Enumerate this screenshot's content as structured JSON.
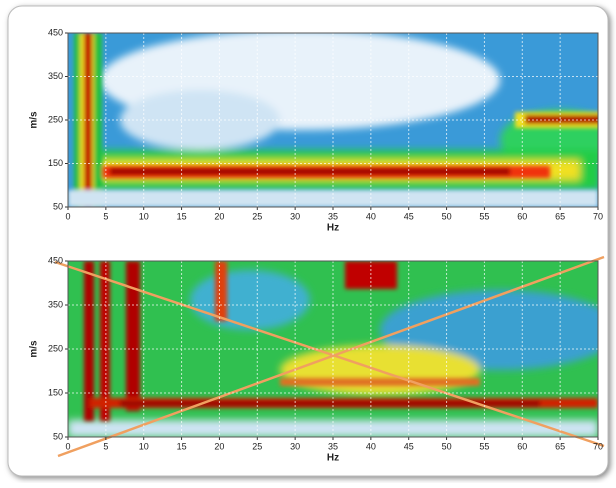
{
  "chart_data": [
    {
      "type": "heatmap",
      "xlabel": "Hz",
      "ylabel": "m/s",
      "xlim": [
        0,
        70
      ],
      "ylim": [
        50,
        450
      ],
      "xticks": [
        0,
        5,
        10,
        15,
        20,
        25,
        30,
        35,
        40,
        45,
        50,
        55,
        60,
        65,
        70
      ],
      "yticks": [
        50,
        150,
        250,
        350,
        450
      ],
      "grid": true
    },
    {
      "type": "heatmap",
      "xlabel": "Hz",
      "ylabel": "m/s",
      "xlim": [
        0,
        70
      ],
      "ylim": [
        50,
        450
      ],
      "xticks": [
        0,
        5,
        10,
        15,
        20,
        25,
        30,
        35,
        40,
        45,
        50,
        55,
        60,
        65,
        70
      ],
      "yticks": [
        50,
        150,
        250,
        350,
        450
      ],
      "grid": true
    }
  ]
}
